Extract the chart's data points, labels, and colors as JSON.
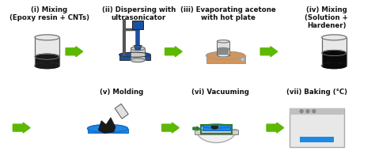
{
  "bg_color": "#ffffff",
  "arrow_color": "#5cb800",
  "step1_title": "(i) Mixing\n(Epoxy resin + CNTs)",
  "step2_title": "(ii) Dispersing with\nultrasonicator",
  "step3_title": "(iii) Evaporating acetone\nwith hot plate",
  "step4_title": "(iv) Mixing\n(Solution +\nHardener)",
  "step5_title": "(v) Molding",
  "step6_title": "(vi) Vacuuming",
  "step7_title": "(vii) Baking (°C)",
  "title_fontsize": 6.2,
  "text_color": "#111111",
  "gray_outline": "#666666",
  "blue_dark": "#1a52a0",
  "blue_mid": "#1e88e5",
  "orange_plate": "#d4955a",
  "black_liquid": "#1a1a1a",
  "gray_glass": "#e8e8e8",
  "green_border": "#2e7d32"
}
